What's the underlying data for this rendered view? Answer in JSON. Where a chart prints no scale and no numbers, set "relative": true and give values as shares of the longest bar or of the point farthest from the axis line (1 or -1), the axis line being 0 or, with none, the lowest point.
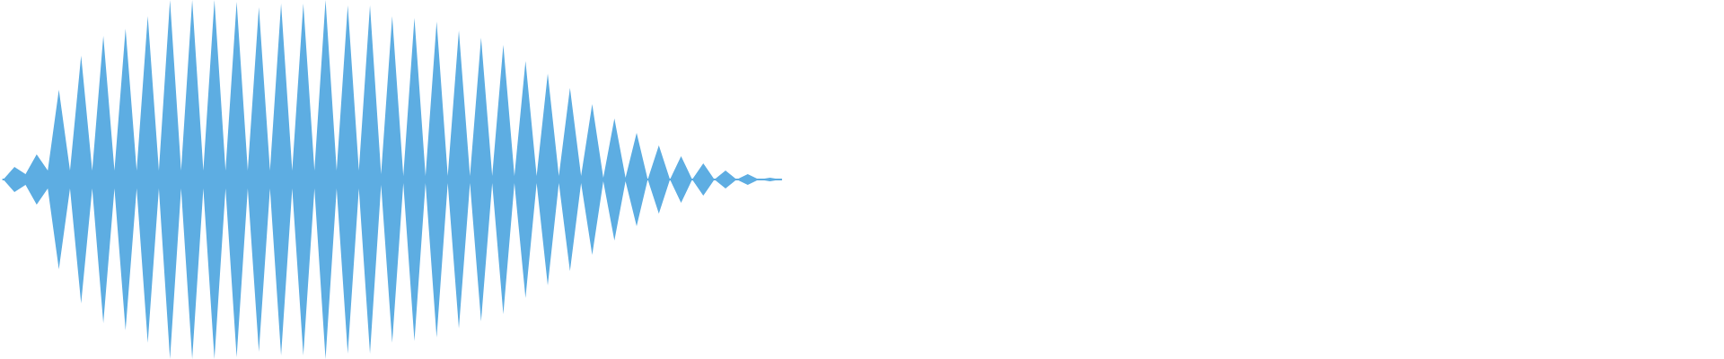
{
  "chart_data": {
    "type": "area",
    "relative": true,
    "categories": [
      null,
      null,
      null,
      null,
      null,
      null,
      null,
      null,
      null,
      null,
      null,
      null,
      null,
      null,
      null,
      null,
      null,
      null,
      null,
      null,
      null,
      null,
      null,
      null,
      null,
      null,
      null,
      null,
      null,
      null,
      null,
      null,
      null,
      null,
      null,
      null,
      null,
      null,
      null,
      null,
      null,
      null,
      null,
      null,
      null,
      null,
      null,
      null,
      null,
      null,
      null,
      null,
      null,
      null,
      null,
      null,
      null,
      null,
      null,
      null,
      null,
      null,
      null,
      null,
      null,
      null,
      null,
      null,
      null,
      null,
      null
    ],
    "series": [
      {
        "color": "#5dade2",
        "values": [
          0,
          0.07,
          0.03,
          0.14,
          0.05,
          0.5,
          0.05,
          0.69,
          0.05,
          0.8,
          0.05,
          0.84,
          0.05,
          0.91,
          0.05,
          1,
          0.05,
          1,
          0.05,
          1,
          0.05,
          0.99,
          0.05,
          0.96,
          0.05,
          0.98,
          0.05,
          0.98,
          0.05,
          1,
          0.05,
          0.97,
          0.05,
          0.97,
          0.03,
          0.91,
          0.02,
          0.9,
          0.02,
          0.88,
          0.02,
          0.83,
          0.02,
          0.79,
          0.02,
          0.75,
          0.02,
          0.66,
          0.02,
          0.59,
          0.02,
          0.51,
          0.02,
          0.42,
          0.01,
          0.34,
          0.01,
          0.26,
          0,
          0.19,
          0,
          0.13,
          0,
          0.09,
          0,
          0.05,
          0,
          0.03,
          0,
          0.01,
          0
        ]
      },
      {
        "color": "#5dade2",
        "values": [
          0,
          -0.07,
          -0.03,
          -0.14,
          -0.05,
          -0.5,
          -0.05,
          -0.69,
          -0.05,
          -0.8,
          -0.05,
          -0.84,
          -0.05,
          -0.91,
          -0.05,
          -1,
          -0.05,
          -1,
          -0.05,
          -1,
          -0.05,
          -0.99,
          -0.05,
          -0.96,
          -0.05,
          -0.98,
          -0.05,
          -0.98,
          -0.05,
          -1,
          -0.05,
          -0.97,
          -0.05,
          -0.97,
          -0.03,
          -0.91,
          -0.02,
          -0.9,
          -0.02,
          -0.88,
          -0.02,
          -0.83,
          -0.02,
          -0.79,
          -0.02,
          -0.75,
          -0.02,
          -0.66,
          -0.02,
          -0.59,
          -0.02,
          -0.51,
          -0.02,
          -0.42,
          -0.01,
          -0.34,
          -0.01,
          -0.26,
          0,
          -0.19,
          0,
          -0.13,
          0,
          -0.09,
          0,
          -0.05,
          0,
          -0.03,
          0,
          -0.01,
          0
        ]
      }
    ]
  }
}
